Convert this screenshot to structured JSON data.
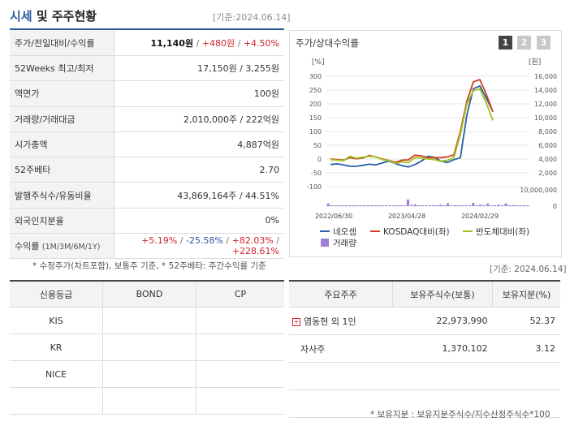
{
  "header": {
    "title_accent": "시세",
    "title_rest": "및 주주현황",
    "date": "[기준:2024.06.14]"
  },
  "quote_rows": {
    "price": {
      "label": "주가/전일대비/수익률",
      "price": "11,140원",
      "change": "+480원",
      "rate": "+4.50%"
    },
    "w52": {
      "label": "52Weeks 최고/최저",
      "value": "17,150원 / 3,255원"
    },
    "face": {
      "label": "액면가",
      "value": "100원"
    },
    "volume": {
      "label": "거래량/거래대금",
      "value": "2,010,000주 / 222억원"
    },
    "mcap": {
      "label": "시가총액",
      "value": "4,887억원"
    },
    "beta": {
      "label": "52주베타",
      "value": "2.70"
    },
    "shares": {
      "label": "발행주식수/유동비율",
      "value": "43,869,164주 / 44.51%"
    },
    "foreign": {
      "label": "외국인지분율",
      "value": "0%"
    },
    "returns": {
      "label": "수익률",
      "label_sub": "(1M/3M/6M/1Y)",
      "r1": "+5.19%",
      "r2": "-25.58%",
      "r3": "+82.03%",
      "r4": "+228.61%"
    }
  },
  "notes": {
    "quote_note": "* 수정주가(차트포함), 보통주 기준, * 52주베타: 주간수익률 기준",
    "holder_date": "[기준: 2024.06.14]",
    "holder_note": "* 보유지분 : 보유지분주식수/지수산정주식수*100"
  },
  "chart_panel": {
    "title": "주가/상대수익률",
    "buttons": [
      "1",
      "2",
      "3"
    ],
    "colors": {
      "active": "#444444",
      "inactive": "#c8c8c8"
    }
  },
  "chart_data": {
    "type": "line",
    "x_ticks": [
      "2022/06/30",
      "2023/04/28",
      "2024/02/29"
    ],
    "left_axis": {
      "unit": "[%]",
      "ticks": [
        300,
        250,
        200,
        150,
        100,
        50,
        0,
        -50,
        -100
      ],
      "range": [
        -100,
        300
      ]
    },
    "right_axis": {
      "unit": "[원]",
      "ticks": [
        "16,000",
        "14,000",
        "12,000",
        "10,000",
        "8,000",
        "6,000",
        "4,000",
        "2,000"
      ],
      "range": [
        2000,
        16000
      ]
    },
    "volume_axis": {
      "ticks": [
        "10,000,000",
        "0"
      ],
      "range": [
        0,
        10000000
      ]
    },
    "series": [
      {
        "name": "네오셈",
        "color": "#2a5da8",
        "axis": "right",
        "values": [
          3200,
          3300,
          3150,
          2950,
          2950,
          3100,
          3250,
          3150,
          3450,
          3700,
          3350,
          3050,
          2850,
          3200,
          3700,
          4400,
          4250,
          3700,
          3500,
          3900,
          4200,
          10400,
          14200,
          14600,
          12800,
          10900
        ]
      },
      {
        "name": "KOSDAQ대비(좌)",
        "color": "#d23f1e",
        "axis": "left",
        "values": [
          0,
          -2,
          -4,
          5,
          1,
          4,
          13,
          7,
          0,
          -5,
          -12,
          -4,
          -3,
          14,
          11,
          5,
          5,
          5,
          8,
          15,
          100,
          210,
          280,
          288,
          234,
          171
        ]
      },
      {
        "name": "반도체대비(좌)",
        "color": "#9ec21e",
        "axis": "left",
        "values": [
          -2,
          -4,
          -6,
          10,
          3,
          7,
          10,
          8,
          -2,
          -6,
          -16,
          -10,
          -13,
          5,
          4,
          0,
          -2,
          -8,
          -5,
          5,
          90,
          200,
          248,
          254,
          202,
          140
        ]
      }
    ],
    "bars": {
      "name": "거래량",
      "color": "#a17fd6",
      "values": [
        1100000,
        150000,
        80000,
        120000,
        100000,
        200000,
        80000,
        60000,
        90000,
        70000,
        90000,
        60000,
        150000,
        80000,
        60000,
        80000,
        70000,
        90000,
        60000,
        60000,
        100000,
        200000,
        2700000,
        500000,
        700000,
        100000,
        100000,
        180000,
        100000,
        140000,
        90000,
        600000,
        200000,
        1200000,
        300000,
        100000,
        60000,
        80000,
        150000,
        60000,
        1300000,
        200000,
        600000,
        200000,
        1000000,
        300000,
        400000,
        600000,
        300000,
        1100000,
        150000,
        400000,
        200000,
        100000,
        120000,
        120000
      ]
    }
  },
  "credit_table": {
    "headers": [
      "신용등급",
      "BOND",
      "CP"
    ],
    "rows": [
      [
        "KIS",
        "",
        ""
      ],
      [
        "KR",
        "",
        ""
      ],
      [
        "NICE",
        "",
        ""
      ],
      [
        "",
        "",
        ""
      ]
    ]
  },
  "holder_table": {
    "headers": [
      "주요주주",
      "보유주식수(보통)",
      "보유지분(%)"
    ],
    "rows": [
      {
        "name": "염동현 외 1인",
        "shares": "22,973,990",
        "pct": "52.37"
      },
      {
        "name": "자사주",
        "shares": "1,370,102",
        "pct": "3.12"
      },
      {
        "name": "",
        "shares": "",
        "pct": ""
      },
      {
        "name": "",
        "shares": "",
        "pct": ""
      }
    ]
  }
}
